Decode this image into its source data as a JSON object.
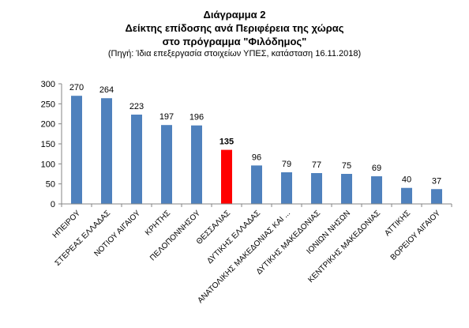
{
  "chart_data": {
    "type": "bar",
    "title": "Διάγραμμα 2",
    "subtitle_line1": "Δείκτης επίδοσης ανά Περιφέρεια της χώρας",
    "subtitle_line2": "στο πρόγραμμα  \"Φιλόδημος\"",
    "source": "(Πηγή: Ίδια επεξεργασία στοιχείων ΥΠΕΣ, κατάσταση  16.11.2018)",
    "categories": [
      "ΗΠΕΙΡΟΥ",
      "ΣΤΕΡΕΑΣ ΕΛΛΑΔΑΣ",
      "ΝΟΤΙΟΥ ΑΙΓΑΙΟΥ",
      "ΚΡΗΤΗΣ",
      "ΠΕΛΟΠΟΝΝΗΣΟΥ",
      "ΘΕΣΣΑΛΙΑΣ",
      "ΔΥΤΙΚΗΣ ΕΛΛΑΔΑΣ",
      "ΑΝΑΤΟΛΙΚΗΣ ΜΑΚΕΔΟΝΙΑΣ ΚΑΙ ...",
      "ΔΥΤΙΚΗΣ ΜΑΚΕΔΟΝΙΑΣ",
      "ΙΟΝΙΩΝ ΝΗΣΩΝ",
      "ΚΕΝΤΡΙΚΗΣ ΜΑΚΕΔΟΝΙΑΣ",
      "ΑΤΤΙΚΗΣ",
      "ΒΟΡΕΙΟΥ ΑΙΓΑΙΟΥ"
    ],
    "values": [
      270,
      264,
      223,
      197,
      196,
      135,
      96,
      79,
      77,
      75,
      69,
      40,
      37
    ],
    "highlight_category": "ΘΕΣΣΑΛΙΑΣ",
    "ylim": [
      0,
      300
    ],
    "yticks": [
      0,
      50,
      100,
      150,
      200,
      250,
      300
    ],
    "xlabel": "",
    "ylabel": "",
    "grid": false,
    "legend": "none",
    "colors": {
      "bar": "#4f81bd",
      "highlight": "#ff0000",
      "axis": "#868686",
      "text": "#000000"
    }
  }
}
